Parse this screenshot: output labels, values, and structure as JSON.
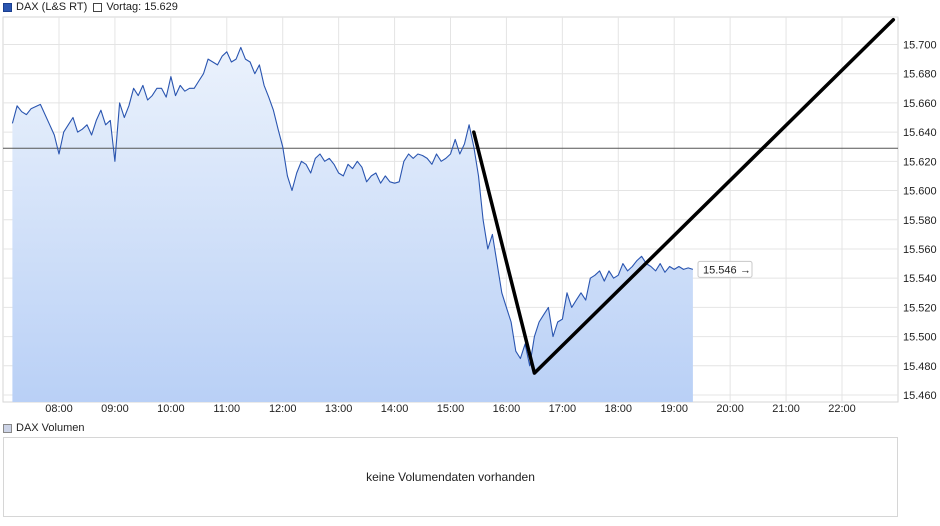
{
  "legend": {
    "series_label": "DAX (L&S RT)",
    "previous_label": "Vortag: 15.629"
  },
  "volume": {
    "label": "DAX Volumen",
    "empty_message": "keine Volumendaten vorhanden"
  },
  "colors": {
    "line": "#2a55b0",
    "fill_top": "#ebf2fc",
    "fill_bottom": "#b9d0f6",
    "grid": "#e4e4e4",
    "previous_close_line": "#555555",
    "drawing": "#000000"
  },
  "chart_data": {
    "type": "line",
    "xlabel": "",
    "ylabel": "",
    "ylim": [
      15455,
      15725
    ],
    "xlim": [
      "07:10",
      "23:00"
    ],
    "x_ticks": [
      "08:00",
      "09:00",
      "10:00",
      "11:00",
      "12:00",
      "13:00",
      "14:00",
      "15:00",
      "16:00",
      "17:00",
      "18:00",
      "19:00",
      "20:00",
      "21:00",
      "22:00"
    ],
    "y_ticks": [
      15460,
      15480,
      15500,
      15520,
      15540,
      15560,
      15580,
      15600,
      15620,
      15640,
      15660,
      15680,
      15700
    ],
    "y_tick_labels": [
      "15.460",
      "15.480",
      "15.500",
      "15.520",
      "15.540",
      "15.560",
      "15.580",
      "15.600",
      "15.620",
      "15.640",
      "15.660",
      "15.680",
      "15.700"
    ],
    "previous_close": 15629,
    "last_value": 15546,
    "last_value_label": "15.546",
    "series": [
      {
        "x": [
          "07:10",
          "07:15",
          "07:20",
          "07:25",
          "07:30",
          "07:40",
          "07:50",
          "07:55",
          "08:00",
          "08:05",
          "08:10",
          "08:15",
          "08:20",
          "08:25",
          "08:30",
          "08:35",
          "08:40",
          "08:45",
          "08:50",
          "08:55",
          "09:00",
          "09:05",
          "09:10",
          "09:15",
          "09:20",
          "09:25",
          "09:30",
          "09:35",
          "09:40",
          "09:45",
          "09:50",
          "09:55",
          "10:00",
          "10:05",
          "10:10",
          "10:15",
          "10:20",
          "10:25",
          "10:30",
          "10:35",
          "10:40",
          "10:45",
          "10:50",
          "10:55",
          "11:00",
          "11:05",
          "11:10",
          "11:15",
          "11:20",
          "11:25",
          "11:30",
          "11:35",
          "11:40",
          "11:45",
          "11:50",
          "11:55",
          "12:00",
          "12:05",
          "12:10",
          "12:15",
          "12:20",
          "12:25",
          "12:30",
          "12:35",
          "12:40",
          "12:45",
          "12:50",
          "12:55",
          "13:00",
          "13:05",
          "13:10",
          "13:15",
          "13:20",
          "13:25",
          "13:30",
          "13:35",
          "13:40",
          "13:45",
          "13:50",
          "13:55",
          "14:00",
          "14:05",
          "14:10",
          "14:15",
          "14:20",
          "14:25",
          "14:30",
          "14:35",
          "14:40",
          "14:45",
          "14:50",
          "14:55",
          "15:00",
          "15:05",
          "15:10",
          "15:15",
          "15:20",
          "15:25",
          "15:30",
          "15:35",
          "15:40",
          "15:45",
          "15:50",
          "15:55",
          "16:00",
          "16:05",
          "16:10",
          "16:15",
          "16:20",
          "16:25",
          "16:30",
          "16:35",
          "16:40",
          "16:45",
          "16:50",
          "16:55",
          "17:00",
          "17:05",
          "17:10",
          "17:15",
          "17:20",
          "17:25",
          "17:30",
          "17:35",
          "17:40",
          "17:45",
          "17:50",
          "17:55",
          "18:00",
          "18:05",
          "18:10",
          "18:15",
          "18:20",
          "18:25",
          "18:30",
          "18:35",
          "18:40",
          "18:45",
          "18:50",
          "18:55",
          "19:00",
          "19:05",
          "19:10",
          "19:15",
          "19:20"
        ],
        "y": [
          15646,
          15658,
          15654,
          15652,
          15656,
          15659,
          15645,
          15638,
          15625,
          15640,
          15645,
          15650,
          15640,
          15642,
          15645,
          15638,
          15648,
          15655,
          15645,
          15648,
          15620,
          15660,
          15650,
          15658,
          15670,
          15665,
          15672,
          15662,
          15665,
          15670,
          15670,
          15664,
          15678,
          15665,
          15672,
          15668,
          15670,
          15670,
          15675,
          15680,
          15690,
          15688,
          15686,
          15692,
          15695,
          15688,
          15690,
          15698,
          15690,
          15688,
          15680,
          15686,
          15672,
          15664,
          15655,
          15642,
          15630,
          15610,
          15600,
          15612,
          15620,
          15618,
          15612,
          15622,
          15625,
          15620,
          15622,
          15618,
          15612,
          15610,
          15618,
          15615,
          15620,
          15616,
          15606,
          15610,
          15612,
          15605,
          15610,
          15606,
          15605,
          15606,
          15620,
          15625,
          15622,
          15625,
          15624,
          15622,
          15618,
          15625,
          15620,
          15622,
          15625,
          15635,
          15625,
          15632,
          15645,
          15630,
          15610,
          15580,
          15560,
          15570,
          15550,
          15530,
          15520,
          15510,
          15490,
          15485,
          15495,
          15480,
          15500,
          15510,
          15515,
          15520,
          15500,
          15510,
          15512,
          15530,
          15520,
          15525,
          15530,
          15525,
          15540,
          15542,
          15545,
          15538,
          15545,
          15540,
          15542,
          15550,
          15545,
          15548,
          15552,
          15555,
          15550,
          15548,
          15545,
          15550,
          15544,
          15548,
          15546,
          15548,
          15546,
          15547,
          15546
        ]
      }
    ],
    "annotation_line": {
      "points": [
        {
          "x": "15:25",
          "y": 15640
        },
        {
          "x": "16:30",
          "y": 15475
        },
        {
          "x": "22:55",
          "y": 15717
        }
      ]
    }
  }
}
